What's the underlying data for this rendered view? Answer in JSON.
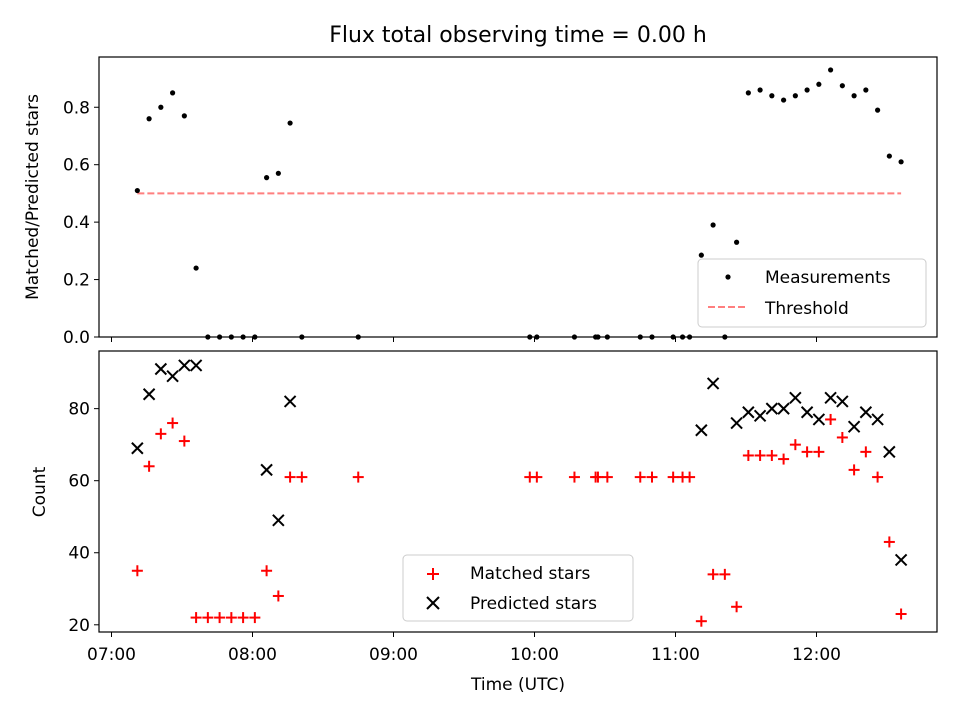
{
  "title": "Flux total observing time = 0.00 h",
  "x_tick_labels": [
    "07:00",
    "08:00",
    "09:00",
    "10:00",
    "11:00",
    "12:00"
  ],
  "colors": {
    "measurements": "#000000",
    "threshold": "#ff7f7f",
    "matched": "#ff0000",
    "predicted": "#000000"
  },
  "chart_data": [
    {
      "type": "scatter",
      "ylabel": "Matched/Predicted stars",
      "ylim": [
        0,
        0.975
      ],
      "y_ticks": [
        "0.0",
        "0.2",
        "0.4",
        "0.6",
        "0.8"
      ],
      "legend": {
        "placement": "lower right",
        "entries": [
          "Measurements",
          "Threshold"
        ]
      },
      "series": [
        {
          "name": "Measurements",
          "marker": "dot",
          "points": [
            [
              "07:11",
              0.51
            ],
            [
              "07:16",
              0.76
            ],
            [
              "07:21",
              0.8
            ],
            [
              "07:26",
              0.85
            ],
            [
              "07:31",
              0.77
            ],
            [
              "07:36",
              0.24
            ],
            [
              "07:41",
              0.0
            ],
            [
              "07:46",
              0.0
            ],
            [
              "07:51",
              0.0
            ],
            [
              "07:56",
              0.0
            ],
            [
              "08:01",
              0.0
            ],
            [
              "08:06",
              0.555
            ],
            [
              "08:11",
              0.57
            ],
            [
              "08:16",
              0.745
            ],
            [
              "08:21",
              0.0
            ],
            [
              "08:45",
              0.0
            ],
            [
              "09:58",
              0.0
            ],
            [
              "10:01",
              0.0
            ],
            [
              "10:17",
              0.0
            ],
            [
              "10:26",
              0.0
            ],
            [
              "10:27",
              0.0
            ],
            [
              "10:31",
              0.0
            ],
            [
              "10:45",
              0.0
            ],
            [
              "10:50",
              0.0
            ],
            [
              "10:59",
              0.0
            ],
            [
              "11:03",
              0.0
            ],
            [
              "11:06",
              0.0
            ],
            [
              "11:11",
              0.285
            ],
            [
              "11:16",
              0.39
            ],
            [
              "11:21",
              0.0
            ],
            [
              "11:26",
              0.33
            ],
            [
              "11:31",
              0.85
            ],
            [
              "11:36",
              0.86
            ],
            [
              "11:41",
              0.84
            ],
            [
              "11:46",
              0.825
            ],
            [
              "11:51",
              0.84
            ],
            [
              "11:56",
              0.86
            ],
            [
              "12:01",
              0.88
            ],
            [
              "12:06",
              0.93
            ],
            [
              "12:11",
              0.875
            ],
            [
              "12:16",
              0.84
            ],
            [
              "12:21",
              0.86
            ],
            [
              "12:26",
              0.79
            ],
            [
              "12:31",
              0.63
            ],
            [
              "12:36",
              0.61
            ]
          ]
        },
        {
          "name": "Threshold",
          "style": "dashed",
          "points": [
            [
              "07:11",
              0.5
            ],
            [
              "12:36",
              0.5
            ]
          ]
        }
      ]
    },
    {
      "type": "scatter",
      "xlabel": "Time (UTC)",
      "ylabel": "Count",
      "ylim": [
        18,
        96
      ],
      "y_ticks": [
        "20",
        "40",
        "60",
        "80"
      ],
      "legend": {
        "placement": "lower center",
        "entries": [
          "Matched stars",
          "Predicted stars"
        ]
      },
      "series": [
        {
          "name": "Matched stars",
          "marker": "plus",
          "points": [
            [
              "07:11",
              35
            ],
            [
              "07:16",
              64
            ],
            [
              "07:21",
              73
            ],
            [
              "07:26",
              76
            ],
            [
              "07:31",
              71
            ],
            [
              "07:36",
              22
            ],
            [
              "07:41",
              22
            ],
            [
              "07:46",
              22
            ],
            [
              "07:51",
              22
            ],
            [
              "07:56",
              22
            ],
            [
              "08:01",
              22
            ],
            [
              "08:06",
              35
            ],
            [
              "08:11",
              28
            ],
            [
              "08:16",
              61
            ],
            [
              "08:21",
              61
            ],
            [
              "08:45",
              61
            ],
            [
              "09:58",
              61
            ],
            [
              "10:01",
              61
            ],
            [
              "10:17",
              61
            ],
            [
              "10:26",
              61
            ],
            [
              "10:27",
              61
            ],
            [
              "10:31",
              61
            ],
            [
              "10:45",
              61
            ],
            [
              "10:50",
              61
            ],
            [
              "10:59",
              61
            ],
            [
              "11:03",
              61
            ],
            [
              "11:06",
              61
            ],
            [
              "11:11",
              21
            ],
            [
              "11:16",
              34
            ],
            [
              "11:21",
              34
            ],
            [
              "11:26",
              25
            ],
            [
              "11:31",
              67
            ],
            [
              "11:36",
              67
            ],
            [
              "11:41",
              67
            ],
            [
              "11:46",
              66
            ],
            [
              "11:51",
              70
            ],
            [
              "11:56",
              68
            ],
            [
              "12:01",
              68
            ],
            [
              "12:06",
              77
            ],
            [
              "12:11",
              72
            ],
            [
              "12:16",
              63
            ],
            [
              "12:21",
              68
            ],
            [
              "12:26",
              61
            ],
            [
              "12:31",
              43
            ],
            [
              "12:36",
              23
            ]
          ]
        },
        {
          "name": "Predicted stars",
          "marker": "x",
          "points": [
            [
              "07:11",
              69
            ],
            [
              "07:16",
              84
            ],
            [
              "07:21",
              91
            ],
            [
              "07:26",
              89
            ],
            [
              "07:31",
              92
            ],
            [
              "07:36",
              92
            ],
            [
              "08:06",
              63
            ],
            [
              "08:11",
              49
            ],
            [
              "08:16",
              82
            ],
            [
              "11:11",
              74
            ],
            [
              "11:16",
              87
            ],
            [
              "11:26",
              76
            ],
            [
              "11:31",
              79
            ],
            [
              "11:36",
              78
            ],
            [
              "11:41",
              80
            ],
            [
              "11:46",
              80
            ],
            [
              "11:51",
              83
            ],
            [
              "11:56",
              79
            ],
            [
              "12:01",
              77
            ],
            [
              "12:06",
              83
            ],
            [
              "12:11",
              82
            ],
            [
              "12:16",
              75
            ],
            [
              "12:21",
              79
            ],
            [
              "12:26",
              77
            ],
            [
              "12:31",
              68
            ],
            [
              "12:36",
              38
            ]
          ]
        }
      ]
    }
  ]
}
